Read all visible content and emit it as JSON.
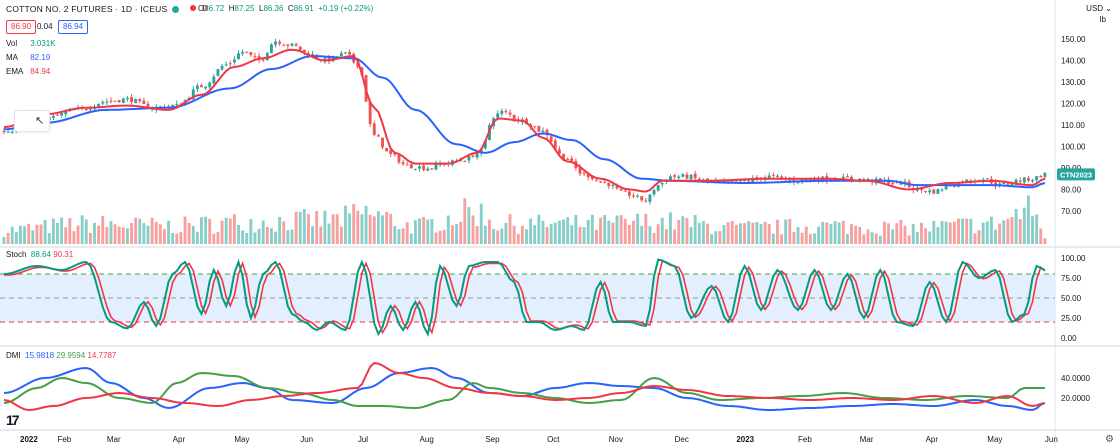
{
  "header": {
    "title": "COTTON NO. 2 FUTURES · 1D · ICEUS",
    "d_badge": "D",
    "ohlc": [
      {
        "k": "O",
        "v": "86.72"
      },
      {
        "k": "H",
        "v": "87.25"
      },
      {
        "k": "L",
        "v": "86.36"
      },
      {
        "k": "C",
        "v": "86.91"
      },
      {
        "k": "",
        "v": "+0.19 (+0.22%)"
      }
    ],
    "sell_price": "86.90",
    "spread": "0.04",
    "buy_price": "86.94",
    "currency": "USD",
    "unit": "lb"
  },
  "indicators": {
    "vol": {
      "name": "Vol",
      "value": "3.031K"
    },
    "ma": {
      "name": "MA",
      "value": "82.19"
    },
    "ema": {
      "name": "EMA",
      "value": "84.94"
    },
    "stoch": {
      "name": "Stoch",
      "k": "88.64",
      "d": "90.31"
    },
    "dmi": {
      "name": "DMI",
      "plus": "15.9818",
      "minus": "29.9594",
      "adx": "14.7787"
    }
  },
  "colors": {
    "up": "#26a69a",
    "down": "#ef5350",
    "ma": "#2962ff",
    "ema": "#f23645",
    "stoch_k": "#089981",
    "stoch_d": "#f23645",
    "dmi_plus": "#2962ff",
    "dmi_minus": "#43a047",
    "dmi_adx": "#f23645",
    "band": "#e3effd"
  },
  "chart_data": {
    "type": "candlestick",
    "price_axis": {
      "ticks": [
        70,
        80,
        90,
        100,
        110,
        120,
        130,
        140,
        150
      ],
      "labels": [
        "70.00",
        "80.00",
        "90.00",
        "100.00",
        "110.00",
        "120.00",
        "130.00",
        "140.00",
        "150.00"
      ],
      "range": [
        63,
        156
      ]
    },
    "last_price_label": "CTN2023",
    "x_labels": [
      "2022",
      "Feb",
      "Mar",
      "Apr",
      "May",
      "Jun",
      "Jul",
      "Aug",
      "Sep",
      "Oct",
      "Nov",
      "Dec",
      "2023",
      "Feb",
      "Mar",
      "Apr",
      "May",
      "Jun"
    ],
    "price_anchors": [
      [
        0,
        107
      ],
      [
        10,
        113
      ],
      [
        18,
        117
      ],
      [
        25,
        121
      ],
      [
        30,
        122
      ],
      [
        36,
        118
      ],
      [
        42,
        119
      ],
      [
        48,
        128
      ],
      [
        54,
        138
      ],
      [
        58,
        144
      ],
      [
        62,
        140
      ],
      [
        66,
        149
      ],
      [
        70,
        147
      ],
      [
        74,
        143
      ],
      [
        78,
        140
      ],
      [
        83,
        143
      ],
      [
        86,
        138
      ],
      [
        90,
        105
      ],
      [
        94,
        96
      ],
      [
        98,
        91
      ],
      [
        103,
        90
      ],
      [
        107,
        92
      ],
      [
        112,
        94
      ],
      [
        116,
        98
      ],
      [
        119,
        114
      ],
      [
        121,
        116
      ],
      [
        126,
        112
      ],
      [
        131,
        107
      ],
      [
        136,
        95
      ],
      [
        141,
        87
      ],
      [
        146,
        83
      ],
      [
        151,
        78
      ],
      [
        156,
        75
      ],
      [
        159,
        82
      ],
      [
        162,
        86
      ],
      [
        166,
        86
      ],
      [
        170,
        84
      ],
      [
        175,
        83
      ],
      [
        180,
        84
      ],
      [
        186,
        86
      ],
      [
        192,
        84
      ],
      [
        198,
        85
      ],
      [
        206,
        85
      ],
      [
        212,
        84
      ],
      [
        218,
        83
      ],
      [
        222,
        80
      ],
      [
        226,
        79
      ],
      [
        230,
        82
      ],
      [
        234,
        84
      ],
      [
        238,
        85
      ],
      [
        242,
        82
      ],
      [
        246,
        84
      ],
      [
        250,
        85
      ],
      [
        253,
        87
      ]
    ],
    "ma_anchors": [
      [
        0,
        108
      ],
      [
        10,
        111
      ],
      [
        25,
        117
      ],
      [
        40,
        118
      ],
      [
        55,
        127
      ],
      [
        65,
        136
      ],
      [
        75,
        142
      ],
      [
        85,
        141
      ],
      [
        92,
        132
      ],
      [
        100,
        117
      ],
      [
        110,
        101
      ],
      [
        117,
        97
      ],
      [
        124,
        102
      ],
      [
        131,
        106
      ],
      [
        138,
        103
      ],
      [
        146,
        94
      ],
      [
        155,
        85
      ],
      [
        162,
        84
      ],
      [
        180,
        83
      ],
      [
        200,
        84
      ],
      [
        215,
        84
      ],
      [
        222,
        82
      ],
      [
        240,
        82
      ],
      [
        250,
        81
      ],
      [
        253,
        83
      ]
    ],
    "ema_anchors": [
      [
        0,
        109
      ],
      [
        10,
        115
      ],
      [
        20,
        118
      ],
      [
        30,
        119
      ],
      [
        40,
        117
      ],
      [
        48,
        124
      ],
      [
        56,
        137
      ],
      [
        63,
        141
      ],
      [
        70,
        145
      ],
      [
        78,
        140
      ],
      [
        85,
        142
      ],
      [
        90,
        118
      ],
      [
        95,
        97
      ],
      [
        100,
        92
      ],
      [
        108,
        92
      ],
      [
        115,
        97
      ],
      [
        120,
        113
      ],
      [
        126,
        112
      ],
      [
        131,
        104
      ],
      [
        137,
        93
      ],
      [
        145,
        85
      ],
      [
        152,
        80
      ],
      [
        156,
        79
      ],
      [
        160,
        84
      ],
      [
        170,
        84
      ],
      [
        186,
        85
      ],
      [
        200,
        85
      ],
      [
        210,
        84
      ],
      [
        220,
        80
      ],
      [
        230,
        83
      ],
      [
        240,
        84
      ],
      [
        250,
        82
      ],
      [
        253,
        85
      ]
    ],
    "volume_profile": [
      [
        0,
        0.35
      ],
      [
        20,
        0.5
      ],
      [
        40,
        0.45
      ],
      [
        60,
        0.55
      ],
      [
        80,
        0.6
      ],
      [
        88,
        0.75
      ],
      [
        100,
        0.45
      ],
      [
        115,
        0.8
      ],
      [
        120,
        0.5
      ],
      [
        140,
        0.5
      ],
      [
        160,
        0.55
      ],
      [
        180,
        0.4
      ],
      [
        200,
        0.45
      ],
      [
        220,
        0.4
      ],
      [
        240,
        0.5
      ],
      [
        250,
        0.85
      ],
      [
        253,
        0.2
      ]
    ],
    "stoch_axis": {
      "ticks": [
        0,
        25,
        50,
        75,
        100
      ],
      "labels": [
        "0.00",
        "25.00",
        "50.00",
        "75.00",
        "100.00"
      ],
      "upper": 80,
      "lower": 20
    },
    "stoch_k_anchors": [
      [
        0,
        80
      ],
      [
        8,
        90
      ],
      [
        14,
        85
      ],
      [
        20,
        95
      ],
      [
        26,
        20
      ],
      [
        30,
        12
      ],
      [
        34,
        45
      ],
      [
        37,
        15
      ],
      [
        41,
        80
      ],
      [
        44,
        95
      ],
      [
        48,
        30
      ],
      [
        51,
        85
      ],
      [
        54,
        40
      ],
      [
        57,
        95
      ],
      [
        60,
        25
      ],
      [
        63,
        80
      ],
      [
        66,
        95
      ],
      [
        70,
        30
      ],
      [
        73,
        20
      ],
      [
        76,
        10
      ],
      [
        79,
        20
      ],
      [
        83,
        10
      ],
      [
        87,
        95
      ],
      [
        91,
        5
      ],
      [
        94,
        40
      ],
      [
        97,
        10
      ],
      [
        100,
        45
      ],
      [
        103,
        5
      ],
      [
        106,
        90
      ],
      [
        110,
        40
      ],
      [
        113,
        90
      ],
      [
        117,
        95
      ],
      [
        120,
        95
      ],
      [
        124,
        70
      ],
      [
        127,
        20
      ],
      [
        130,
        20
      ],
      [
        134,
        10
      ],
      [
        138,
        15
      ],
      [
        141,
        10
      ],
      [
        145,
        70
      ],
      [
        148,
        20
      ],
      [
        152,
        20
      ],
      [
        156,
        15
      ],
      [
        159,
        98
      ],
      [
        163,
        90
      ],
      [
        167,
        25
      ],
      [
        172,
        65
      ],
      [
        176,
        20
      ],
      [
        180,
        90
      ],
      [
        184,
        35
      ],
      [
        188,
        85
      ],
      [
        193,
        35
      ],
      [
        197,
        85
      ],
      [
        201,
        35
      ],
      [
        205,
        80
      ],
      [
        209,
        25
      ],
      [
        213,
        85
      ],
      [
        217,
        20
      ],
      [
        221,
        15
      ],
      [
        225,
        70
      ],
      [
        229,
        20
      ],
      [
        233,
        95
      ],
      [
        237,
        75
      ],
      [
        241,
        85
      ],
      [
        245,
        20
      ],
      [
        248,
        30
      ],
      [
        251,
        90
      ],
      [
        253,
        85
      ]
    ],
    "dmi_axis": {
      "ticks": [
        20,
        40
      ],
      "labels": [
        "20.0000",
        "40.0000"
      ],
      "range": [
        0,
        60
      ]
    },
    "dmi_plus_anchors": [
      [
        0,
        25
      ],
      [
        10,
        40
      ],
      [
        20,
        50
      ],
      [
        26,
        35
      ],
      [
        34,
        20
      ],
      [
        40,
        10
      ],
      [
        50,
        30
      ],
      [
        58,
        35
      ],
      [
        64,
        30
      ],
      [
        70,
        18
      ],
      [
        80,
        15
      ],
      [
        88,
        30
      ],
      [
        96,
        45
      ],
      [
        104,
        50
      ],
      [
        110,
        40
      ],
      [
        118,
        25
      ],
      [
        126,
        22
      ],
      [
        134,
        30
      ],
      [
        142,
        35
      ],
      [
        150,
        32
      ],
      [
        158,
        30
      ],
      [
        166,
        20
      ],
      [
        176,
        12
      ],
      [
        186,
        8
      ],
      [
        196,
        10
      ],
      [
        206,
        12
      ],
      [
        216,
        14
      ],
      [
        226,
        12
      ],
      [
        236,
        18
      ],
      [
        244,
        12
      ],
      [
        250,
        8
      ],
      [
        253,
        15
      ]
    ],
    "dmi_minus_anchors": [
      [
        0,
        15
      ],
      [
        8,
        30
      ],
      [
        14,
        40
      ],
      [
        20,
        35
      ],
      [
        28,
        20
      ],
      [
        36,
        15
      ],
      [
        42,
        35
      ],
      [
        48,
        45
      ],
      [
        56,
        42
      ],
      [
        64,
        30
      ],
      [
        72,
        25
      ],
      [
        80,
        18
      ],
      [
        86,
        12
      ],
      [
        92,
        12
      ],
      [
        100,
        10
      ],
      [
        108,
        18
      ],
      [
        114,
        35
      ],
      [
        118,
        30
      ],
      [
        126,
        25
      ],
      [
        134,
        20
      ],
      [
        142,
        15
      ],
      [
        150,
        18
      ],
      [
        158,
        40
      ],
      [
        166,
        25
      ],
      [
        174,
        18
      ],
      [
        184,
        20
      ],
      [
        194,
        22
      ],
      [
        204,
        25
      ],
      [
        214,
        20
      ],
      [
        224,
        18
      ],
      [
        234,
        22
      ],
      [
        244,
        20
      ],
      [
        248,
        30
      ],
      [
        253,
        30
      ]
    ],
    "dmi_adx_anchors": [
      [
        0,
        18
      ],
      [
        6,
        8
      ],
      [
        12,
        12
      ],
      [
        20,
        20
      ],
      [
        28,
        25
      ],
      [
        36,
        20
      ],
      [
        44,
        15
      ],
      [
        52,
        12
      ],
      [
        60,
        18
      ],
      [
        68,
        22
      ],
      [
        76,
        25
      ],
      [
        86,
        30
      ],
      [
        90,
        55
      ],
      [
        96,
        45
      ],
      [
        102,
        40
      ],
      [
        110,
        30
      ],
      [
        118,
        25
      ],
      [
        126,
        22
      ],
      [
        134,
        18
      ],
      [
        142,
        20
      ],
      [
        150,
        25
      ],
      [
        158,
        32
      ],
      [
        166,
        28
      ],
      [
        176,
        22
      ],
      [
        186,
        20
      ],
      [
        196,
        18
      ],
      [
        206,
        20
      ],
      [
        216,
        18
      ],
      [
        226,
        22
      ],
      [
        236,
        15
      ],
      [
        244,
        22
      ],
      [
        250,
        12
      ],
      [
        253,
        15
      ]
    ]
  }
}
